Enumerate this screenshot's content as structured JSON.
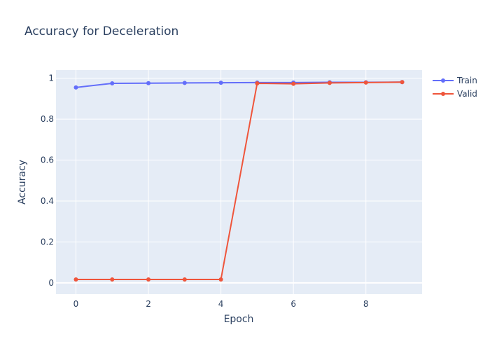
{
  "chart_data": {
    "type": "line",
    "title": "Accuracy for Deceleration",
    "xlabel": "Epoch",
    "ylabel": "Accuracy",
    "x": [
      0,
      1,
      2,
      3,
      4,
      5,
      6,
      7,
      8,
      9
    ],
    "xlim": [
      -0.55,
      9.55
    ],
    "ylim": [
      -0.055,
      1.04
    ],
    "x_ticks": [
      0,
      2,
      4,
      6,
      8
    ],
    "y_ticks": [
      0,
      0.2,
      0.4,
      0.6,
      0.8,
      1
    ],
    "x_tick_labels": [
      "0",
      "2",
      "4",
      "6",
      "8"
    ],
    "y_tick_labels": [
      "0",
      "0.2",
      "0.4",
      "0.6",
      "0.8",
      "1"
    ],
    "grid": true,
    "legend_position": "top-right",
    "series": [
      {
        "name": "Train",
        "color": "#636efa",
        "values": [
          0.955,
          0.975,
          0.976,
          0.977,
          0.978,
          0.979,
          0.979,
          0.98,
          0.98,
          0.981
        ]
      },
      {
        "name": "Valid",
        "color": "#ef553b",
        "values": [
          0.017,
          0.017,
          0.017,
          0.017,
          0.017,
          0.975,
          0.973,
          0.977,
          0.979,
          0.981
        ]
      }
    ]
  }
}
